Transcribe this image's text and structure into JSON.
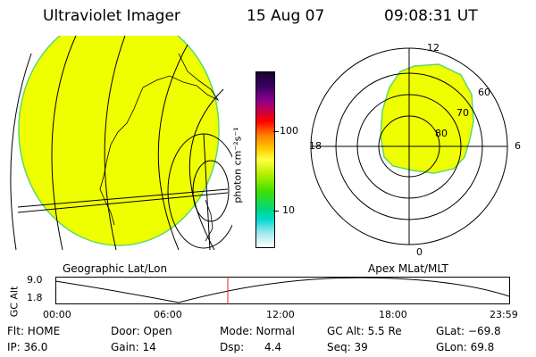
{
  "header": {
    "instrument": "Ultraviolet Imager",
    "date": "15 Aug 07",
    "time": "09:08:31 UT"
  },
  "geo_map": {
    "label": "Geographic Lat/Lon",
    "fill_color": "#f0ff00",
    "edge_color": "#5cd86a"
  },
  "colorbar": {
    "unit_label": "photon cm⁻²s⁻¹",
    "ticks": [
      "100",
      "10"
    ]
  },
  "polar_map": {
    "label": "Apex MLat/MLT",
    "mlt_labels": {
      "top": "12",
      "left": "18",
      "right": "6",
      "bottom": "0"
    },
    "mlat_labels": [
      "60",
      "70",
      "80"
    ]
  },
  "altitude_plot": {
    "ylabel": "GC Alt",
    "yticks": [
      "9.0",
      "1.8"
    ],
    "xticks": [
      "00:00",
      "06:00",
      "12:00",
      "18:00",
      "23:59"
    ],
    "marker_color": "#e02020"
  },
  "info": {
    "flt": "Flt: HOME",
    "ip": "IP: 36.0",
    "door": "Door: Open",
    "gain": "Gain: 14",
    "mode": "Mode: Normal",
    "dsp_label": "Dsp:",
    "dsp_value": "4.4",
    "gc_alt": "GC Alt: 5.5 Re",
    "seq": "Seq: 39",
    "glat": "GLat: −69.8",
    "glon": "GLon:  69.8"
  }
}
